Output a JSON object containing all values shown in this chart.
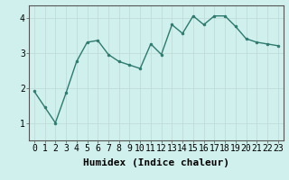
{
  "x": [
    0,
    1,
    2,
    3,
    4,
    5,
    6,
    7,
    8,
    9,
    10,
    11,
    12,
    13,
    14,
    15,
    16,
    17,
    18,
    19,
    20,
    21,
    22,
    23
  ],
  "y": [
    1.9,
    1.45,
    1.0,
    1.85,
    2.75,
    3.3,
    3.35,
    2.95,
    2.75,
    2.65,
    2.55,
    3.25,
    2.95,
    3.8,
    3.55,
    4.05,
    3.8,
    4.05,
    4.05,
    3.75,
    3.4,
    3.3,
    3.25,
    3.2
  ],
  "line_color": "#2d7a6e",
  "marker": "o",
  "marker_size": 2,
  "linewidth": 1.0,
  "xlabel": "Humidex (Indice chaleur)",
  "xlim": [
    -0.5,
    23.5
  ],
  "ylim": [
    0.5,
    4.35
  ],
  "yticks": [
    1,
    2,
    3,
    4
  ],
  "xtick_labels": [
    "0",
    "1",
    "2",
    "3",
    "4",
    "5",
    "6",
    "7",
    "8",
    "9",
    "10",
    "11",
    "12",
    "13",
    "14",
    "15",
    "16",
    "17",
    "18",
    "19",
    "20",
    "21",
    "22",
    "23"
  ],
  "bg_color": "#cff0ec",
  "grid_color": "#c0dcd8",
  "spine_color": "#555555",
  "xlabel_fontsize": 8,
  "tick_fontsize": 7
}
